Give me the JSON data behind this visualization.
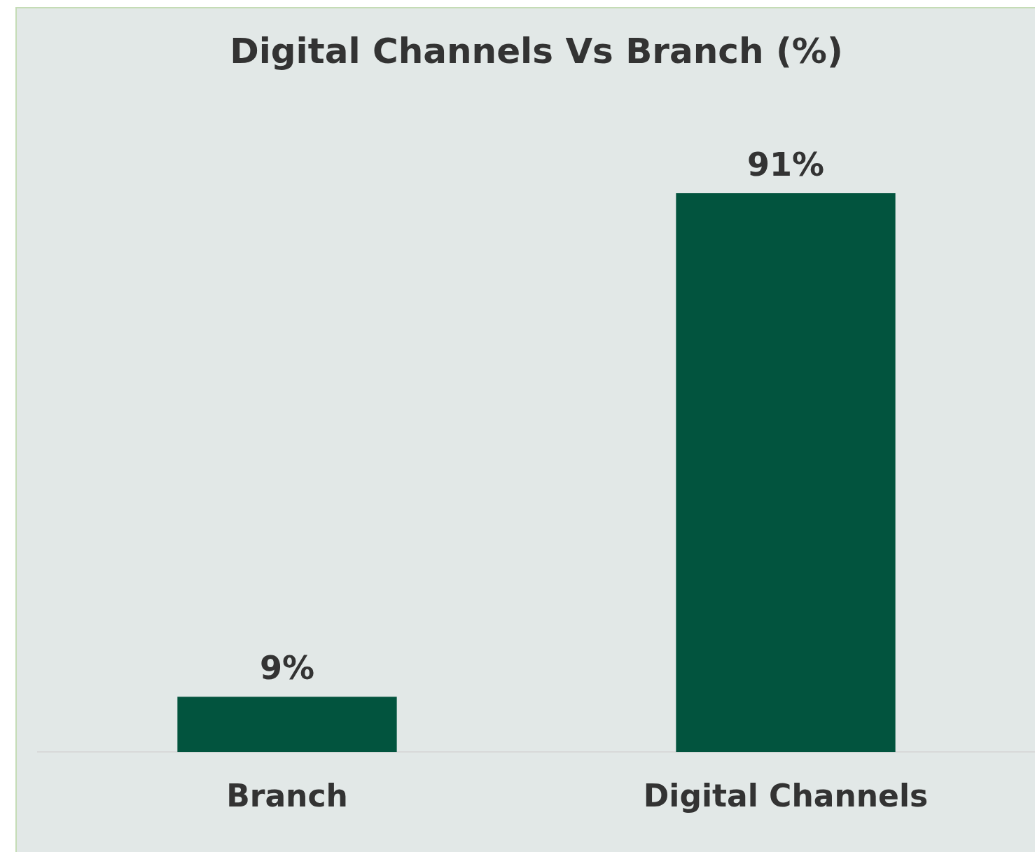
{
  "chart_data": {
    "type": "bar",
    "title": "Digital Channels Vs Branch (%)",
    "categories": [
      "Branch",
      "Digital Channels"
    ],
    "values": [
      9,
      91
    ],
    "color": "#02543e",
    "value_labels": [
      "9%",
      "91%"
    ],
    "grid": false,
    "legend": false
  }
}
